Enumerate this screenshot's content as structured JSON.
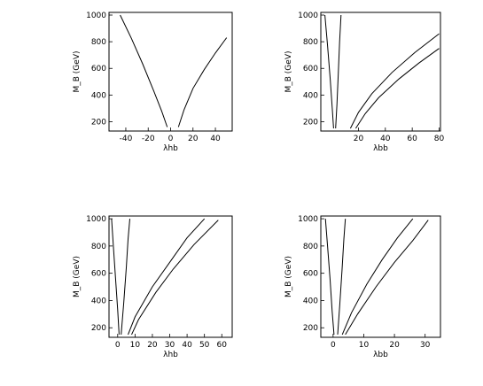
{
  "chart_data": [
    {
      "type": "line",
      "xlabel": "λhb",
      "ylabel": "M_B (GeV)",
      "xlim": [
        -55,
        55
      ],
      "ylim": [
        130,
        1020
      ],
      "xticks": [
        -40,
        -20,
        0,
        20,
        40
      ],
      "xtick_labels": [
        "-40",
        "-20",
        "0",
        "20",
        "40"
      ],
      "yticks": [
        200,
        400,
        600,
        800,
        1000
      ],
      "ytick_labels": [
        "200",
        "400",
        "600",
        "800",
        "1000"
      ],
      "grid": false,
      "series": [
        {
          "x": [
            -45,
            -35,
            -25,
            -15,
            -8,
            -3
          ],
          "y": [
            1000,
            825,
            635,
            430,
            280,
            160
          ]
        },
        {
          "x": [
            7,
            12,
            20,
            30,
            40,
            50
          ],
          "y": [
            160,
            290,
            450,
            590,
            715,
            830
          ]
        }
      ]
    },
    {
      "type": "line",
      "xlabel": "λbb",
      "ylabel": "M_B (GeV)",
      "xlim": [
        -8,
        81
      ],
      "ylim": [
        130,
        1020
      ],
      "xticks": [
        20,
        40,
        60,
        80
      ],
      "xtick_labels": [
        "20",
        "40",
        "60",
        "80"
      ],
      "yticks": [
        200,
        400,
        600,
        800,
        1000
      ],
      "ytick_labels": [
        "200",
        "400",
        "600",
        "800",
        "1000"
      ],
      "grid": false,
      "series": [
        {
          "x": [
            -5,
            -3,
            -1,
            0.5,
            1.5
          ],
          "y": [
            1000,
            770,
            520,
            300,
            150
          ]
        },
        {
          "x": [
            3,
            4,
            5,
            6,
            7
          ],
          "y": [
            150,
            330,
            560,
            800,
            1000
          ]
        },
        {
          "x": [
            14,
            20,
            30,
            45,
            62,
            80
          ],
          "y": [
            150,
            270,
            410,
            570,
            720,
            860
          ]
        },
        {
          "x": [
            18,
            25,
            35,
            50,
            65,
            80
          ],
          "y": [
            150,
            260,
            380,
            520,
            640,
            750
          ]
        }
      ]
    },
    {
      "type": "line",
      "xlabel": "λhb",
      "ylabel": "M_B (GeV)",
      "xlim": [
        -5,
        66
      ],
      "ylim": [
        130,
        1020
      ],
      "xticks": [
        0,
        10,
        20,
        30,
        40,
        50,
        60
      ],
      "xtick_labels": [
        "0",
        "10",
        "20",
        "30",
        "40",
        "50",
        "60"
      ],
      "yticks": [
        200,
        400,
        600,
        800,
        1000
      ],
      "ytick_labels": [
        "200",
        "400",
        "600",
        "800",
        "1000"
      ],
      "grid": false,
      "series": [
        {
          "x": [
            -3.5,
            -2.5,
            -1.2,
            0,
            0.8
          ],
          "y": [
            1000,
            800,
            560,
            330,
            150
          ]
        },
        {
          "x": [
            2,
            3.5,
            5,
            6,
            7
          ],
          "y": [
            150,
            380,
            650,
            850,
            1000
          ]
        },
        {
          "x": [
            6,
            10,
            20,
            30,
            40,
            50
          ],
          "y": [
            150,
            280,
            500,
            680,
            860,
            1000
          ]
        },
        {
          "x": [
            8,
            12,
            22,
            32,
            44,
            58
          ],
          "y": [
            150,
            260,
            460,
            630,
            810,
            990
          ]
        }
      ]
    },
    {
      "type": "line",
      "xlabel": "λbb",
      "ylabel": "M_B (GeV)",
      "xlim": [
        -4,
        35
      ],
      "ylim": [
        130,
        1020
      ],
      "xticks": [
        0,
        10,
        20,
        30
      ],
      "xtick_labels": [
        "0",
        "10",
        "20",
        "30"
      ],
      "yticks": [
        200,
        400,
        600,
        800,
        1000
      ],
      "ytick_labels": [
        "200",
        "400",
        "600",
        "800",
        "1000"
      ],
      "grid": false,
      "series": [
        {
          "x": [
            -2.5,
            -1.8,
            -1,
            -0.3,
            0.3
          ],
          "y": [
            1000,
            800,
            560,
            320,
            150
          ]
        },
        {
          "x": [
            1.5,
            2.2,
            2.9,
            3.5,
            4
          ],
          "y": [
            150,
            380,
            620,
            850,
            1000
          ]
        },
        {
          "x": [
            3,
            6,
            11,
            16,
            21,
            26
          ],
          "y": [
            150,
            310,
            520,
            700,
            860,
            1000
          ]
        },
        {
          "x": [
            4,
            8,
            14,
            20,
            26,
            31
          ],
          "y": [
            150,
            300,
            500,
            680,
            840,
            990
          ]
        }
      ]
    }
  ]
}
